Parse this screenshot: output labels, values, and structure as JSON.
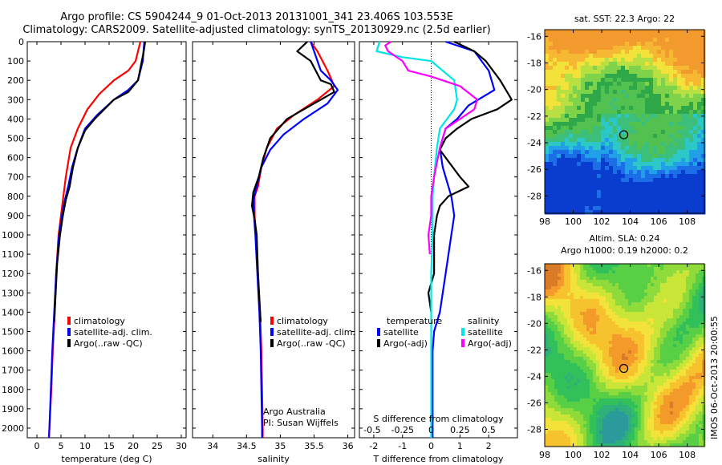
{
  "title_line1": "Argo profile: CS 5904244_9 01-Oct-2013 20131001_341 23.406S 103.553E",
  "title_line2": "Climatology: CARS2009. Satellite-adjusted climatology: synTS_20130929.nc (2.5d earlier)",
  "colors": {
    "climatology": "#ff0000",
    "satellite": "#0000ff",
    "argo": "#000000",
    "salinity_satellite": "#00e5e5",
    "salinity_argo": "#ff00ff"
  },
  "chart_data": [
    {
      "type": "line",
      "xlabel": "temperature (deg C)",
      "ylabel": "",
      "xlim": [
        -2,
        31
      ],
      "ylim": [
        2050,
        0
      ],
      "xticks": [
        0,
        5,
        10,
        15,
        20,
        25,
        30
      ],
      "yticks": [
        0,
        100,
        200,
        300,
        400,
        500,
        600,
        700,
        800,
        900,
        1000,
        1100,
        1200,
        1300,
        1400,
        1500,
        1600,
        1700,
        1800,
        1900,
        2000
      ],
      "legend": [
        "climatology",
        "satellite-adj. clim.",
        "Argo(..raw -QC)"
      ],
      "series": [
        {
          "name": "climatology",
          "color": "#ff0000",
          "points": [
            [
              21.5,
              0
            ],
            [
              20.5,
              100
            ],
            [
              19,
              150
            ],
            [
              16,
              200
            ],
            [
              13,
              270
            ],
            [
              10.5,
              350
            ],
            [
              8.5,
              450
            ],
            [
              7,
              550
            ],
            [
              6,
              700
            ],
            [
              5.5,
              800
            ],
            [
              5,
              900
            ],
            [
              4.5,
              1000
            ],
            [
              4,
              1200
            ],
            [
              3.7,
              1400
            ],
            [
              3.3,
              1600
            ],
            [
              3,
              1800
            ],
            [
              2.6,
              2000
            ],
            [
              2.5,
              2050
            ]
          ]
        },
        {
          "name": "satellite-adj. clim.",
          "color": "#0000ff",
          "points": [
            [
              22.3,
              0
            ],
            [
              22,
              100
            ],
            [
              21,
              200
            ],
            [
              19,
              250
            ],
            [
              16,
              300
            ],
            [
              12.5,
              380
            ],
            [
              10,
              450
            ],
            [
              8.5,
              550
            ],
            [
              7.3,
              650
            ],
            [
              6.5,
              750
            ],
            [
              5.8,
              820
            ],
            [
              5.2,
              900
            ],
            [
              4.6,
              1000
            ],
            [
              4,
              1200
            ],
            [
              3.6,
              1400
            ],
            [
              3.2,
              1600
            ],
            [
              2.9,
              1800
            ],
            [
              2.6,
              2000
            ],
            [
              2.5,
              2050
            ]
          ]
        },
        {
          "name": "Argo(..raw -QC)",
          "color": "#000000",
          "points": [
            [
              22.5,
              0
            ],
            [
              22.2,
              50
            ],
            [
              21.8,
              100
            ],
            [
              21,
              200
            ],
            [
              19,
              260
            ],
            [
              16,
              300
            ],
            [
              12,
              400
            ],
            [
              10,
              460
            ],
            [
              8.5,
              550
            ],
            [
              7.5,
              650
            ],
            [
              6.8,
              750
            ],
            [
              6,
              820
            ],
            [
              5.4,
              900
            ],
            [
              4.8,
              1000
            ],
            [
              4.2,
              1150
            ],
            [
              3.9,
              1300
            ],
            [
              3.7,
              1400
            ],
            [
              3.6,
              1450
            ]
          ]
        }
      ]
    },
    {
      "type": "line",
      "xlabel": "salinity",
      "ylabel": "",
      "xlim": [
        33.7,
        36.1
      ],
      "ylim": [
        2050,
        0
      ],
      "xticks": [
        34,
        34.5,
        35,
        35.5,
        36
      ],
      "legend": [
        "climatology",
        "satellite-adj. clim.",
        "Argo(..raw -QC)"
      ],
      "annotations": [
        "Argo Australia",
        "PI: Susan Wijffels"
      ],
      "series": [
        {
          "name": "climatology",
          "color": "#ff0000",
          "points": [
            [
              35.45,
              0
            ],
            [
              35.55,
              50
            ],
            [
              35.7,
              150
            ],
            [
              35.8,
              230
            ],
            [
              35.55,
              300
            ],
            [
              35.2,
              380
            ],
            [
              34.95,
              450
            ],
            [
              34.8,
              550
            ],
            [
              34.72,
              650
            ],
            [
              34.67,
              750
            ],
            [
              34.62,
              800
            ],
            [
              34.62,
              900
            ],
            [
              34.64,
              1000
            ],
            [
              34.67,
              1200
            ],
            [
              34.7,
              1400
            ],
            [
              34.72,
              1600
            ],
            [
              34.73,
              1800
            ],
            [
              34.74,
              2000
            ],
            [
              34.74,
              2050
            ]
          ]
        },
        {
          "name": "satellite-adj. clim.",
          "color": "#0000ff",
          "points": [
            [
              35.45,
              0
            ],
            [
              35.5,
              50
            ],
            [
              35.6,
              150
            ],
            [
              35.75,
              200
            ],
            [
              35.85,
              250
            ],
            [
              35.7,
              320
            ],
            [
              35.35,
              400
            ],
            [
              35.05,
              480
            ],
            [
              34.85,
              560
            ],
            [
              34.72,
              650
            ],
            [
              34.65,
              750
            ],
            [
              34.6,
              820
            ],
            [
              34.61,
              900
            ],
            [
              34.63,
              1000
            ],
            [
              34.66,
              1200
            ],
            [
              34.69,
              1400
            ],
            [
              34.71,
              1600
            ],
            [
              34.72,
              1800
            ],
            [
              34.73,
              2000
            ],
            [
              34.73,
              2050
            ]
          ]
        },
        {
          "name": "Argo(..raw -QC)",
          "color": "#000000",
          "points": [
            [
              35.4,
              0
            ],
            [
              35.25,
              50
            ],
            [
              35.45,
              100
            ],
            [
              35.6,
              200
            ],
            [
              35.75,
              220
            ],
            [
              35.8,
              260
            ],
            [
              35.5,
              320
            ],
            [
              35.1,
              400
            ],
            [
              34.85,
              500
            ],
            [
              34.75,
              600
            ],
            [
              34.68,
              700
            ],
            [
              34.6,
              780
            ],
            [
              34.58,
              850
            ],
            [
              34.62,
              920
            ],
            [
              34.65,
              1000
            ],
            [
              34.67,
              1200
            ],
            [
              34.7,
              1400
            ],
            [
              34.71,
              1450
            ]
          ]
        }
      ]
    },
    {
      "type": "line",
      "xlabel": "T difference from climatology",
      "xlabel_top": "S difference from climatology",
      "xlim": [
        -2.5,
        3
      ],
      "ylim": [
        2050,
        0
      ],
      "xticks": [
        -2,
        -1,
        0,
        1,
        2
      ],
      "xticks_top": [
        "-0.5",
        "-0.25",
        "0",
        "0.25",
        "0.5"
      ],
      "legend_headers": [
        "temperature",
        "salinity"
      ],
      "legend": [
        "satellite",
        "Argo(-adj)",
        "satellite",
        "Argo(-adj)"
      ],
      "series": [
        {
          "name": "temperature satellite",
          "color": "#0000ff",
          "points": [
            [
              0.5,
              0
            ],
            [
              1.5,
              50
            ],
            [
              2,
              150
            ],
            [
              2.2,
              250
            ],
            [
              1.3,
              330
            ],
            [
              0.9,
              400
            ],
            [
              0.5,
              450
            ],
            [
              0.3,
              550
            ],
            [
              0.4,
              650
            ],
            [
              0.6,
              750
            ],
            [
              0.7,
              800
            ],
            [
              0.8,
              900
            ],
            [
              0.7,
              1000
            ],
            [
              0.5,
              1200
            ],
            [
              0.3,
              1400
            ],
            [
              0.1,
              1500
            ],
            [
              0.05,
              1600
            ],
            [
              0.05,
              1800
            ],
            [
              0.05,
              2050
            ]
          ]
        },
        {
          "name": "temperature Argo(-adj)",
          "color": "#000000",
          "points": [
            [
              0.8,
              0
            ],
            [
              1.5,
              50
            ],
            [
              1.9,
              100
            ],
            [
              2.4,
              200
            ],
            [
              2.8,
              300
            ],
            [
              2.3,
              350
            ],
            [
              1.4,
              400
            ],
            [
              0.9,
              450
            ],
            [
              0.5,
              500
            ],
            [
              0.3,
              560
            ],
            [
              0.6,
              620
            ],
            [
              1,
              700
            ],
            [
              1.3,
              750
            ],
            [
              0.6,
              800
            ],
            [
              0.3,
              850
            ],
            [
              0.2,
              900
            ],
            [
              0.1,
              1000
            ],
            [
              0.1,
              1200
            ],
            [
              -0.1,
              1300
            ],
            [
              0,
              1400
            ]
          ]
        },
        {
          "name": "salinity satellite",
          "color": "#00e5e5",
          "points": [
            [
              -1.8,
              0
            ],
            [
              -1.9,
              50
            ],
            [
              -1,
              80
            ],
            [
              0,
              100
            ],
            [
              0.8,
              200
            ],
            [
              0.9,
              300
            ],
            [
              0.8,
              350
            ],
            [
              0.3,
              450
            ],
            [
              0.2,
              550
            ],
            [
              0.1,
              700
            ],
            [
              0.05,
              800
            ],
            [
              0.05,
              1000
            ],
            [
              0,
              1200
            ],
            [
              0,
              1400
            ],
            [
              0,
              1600
            ],
            [
              0,
              2050
            ]
          ]
        },
        {
          "name": "salinity Argo(-adj)",
          "color": "#ff00ff",
          "points": [
            [
              -1.4,
              0
            ],
            [
              -1.6,
              20
            ],
            [
              -1.5,
              50
            ],
            [
              -1,
              100
            ],
            [
              -0.8,
              150
            ],
            [
              0,
              180
            ],
            [
              1,
              230
            ],
            [
              1.6,
              300
            ],
            [
              1.5,
              350
            ],
            [
              0.5,
              450
            ],
            [
              0.3,
              550
            ],
            [
              0.1,
              700
            ],
            [
              0,
              800
            ],
            [
              0,
              900
            ],
            [
              -0.1,
              1000
            ],
            [
              -0.05,
              1100
            ]
          ]
        }
      ]
    },
    {
      "type": "heatmap",
      "title": "sat. SST: 22.3 Argo: 22",
      "xlim": [
        98,
        109.2
      ],
      "ylim": [
        -29.3,
        -15.5
      ],
      "xticks": [
        98,
        100,
        102,
        104,
        106,
        108
      ],
      "yticks": [
        -16,
        -18,
        -20,
        -22,
        -24,
        -26,
        -28
      ],
      "marker": {
        "x": 103.55,
        "y": -23.4
      }
    },
    {
      "type": "heatmap",
      "title": "Altim. SLA: 0.24",
      "subtitle": "Argo h1000: 0.19 h2000: 0.2",
      "xlim": [
        98,
        109.2
      ],
      "ylim": [
        -29.3,
        -15.5
      ],
      "xticks": [
        98,
        100,
        102,
        104,
        106,
        108
      ],
      "yticks": [
        -16,
        -18,
        -20,
        -22,
        -24,
        -26,
        -28
      ],
      "marker": {
        "x": 103.55,
        "y": -23.4
      }
    }
  ],
  "side_stamp": "IMOS 06-Oct-2013 20:00:55"
}
